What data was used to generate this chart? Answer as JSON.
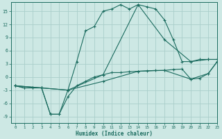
{
  "xlabel": "Humidex (Indice chaleur)",
  "ylabel": "",
  "bg_color": "#cde8e4",
  "line_color": "#1a6b5e",
  "grid_color": "#aaceca",
  "xlim": [
    -0.5,
    23
  ],
  "ylim": [
    -10.5,
    17
  ],
  "xticks": [
    0,
    1,
    2,
    3,
    4,
    5,
    6,
    7,
    8,
    9,
    10,
    11,
    12,
    13,
    14,
    15,
    16,
    17,
    18,
    19,
    20,
    21,
    22,
    23
  ],
  "yticks": [
    -9,
    -6,
    -3,
    0,
    3,
    6,
    9,
    12,
    15
  ],
  "curve_arch_x": [
    0,
    1,
    2,
    3,
    4,
    5,
    6,
    7,
    8,
    9,
    10,
    11,
    12,
    13,
    14,
    15,
    16,
    17,
    18,
    19,
    20,
    21,
    22,
    23
  ],
  "curve_arch_y": [
    -2,
    -2.5,
    -2.5,
    -2.5,
    -8.5,
    -8.5,
    -3.0,
    3.5,
    10.5,
    11.5,
    15.0,
    15.5,
    16.5,
    15.5,
    16.5,
    16.0,
    15.5,
    13.0,
    8.5,
    3.5,
    3.5,
    4.0,
    4.0,
    4.0
  ],
  "curve_flat_x": [
    0,
    1,
    2,
    3,
    4,
    5,
    6,
    7,
    8,
    9,
    10,
    11,
    12,
    13,
    14,
    15,
    16,
    17,
    18,
    19,
    20,
    21,
    22,
    23
  ],
  "curve_flat_y": [
    -2,
    -2.5,
    -2.5,
    -2.5,
    -8.5,
    -8.5,
    -4.5,
    -2.0,
    -1.0,
    0.0,
    0.5,
    1.0,
    1.0,
    1.2,
    1.3,
    1.4,
    1.5,
    1.5,
    1.7,
    1.8,
    -0.5,
    -0.3,
    0.8,
    3.5
  ],
  "curve_diag_upper_x": [
    0,
    3,
    6,
    10,
    14,
    17,
    20,
    22,
    23
  ],
  "curve_diag_upper_y": [
    -2,
    -2.5,
    -3.0,
    0.5,
    16.5,
    8.5,
    3.5,
    4.0,
    4.0
  ],
  "curve_diag_lower_x": [
    0,
    3,
    6,
    10,
    14,
    17,
    20,
    22,
    23
  ],
  "curve_diag_lower_y": [
    -2,
    -2.5,
    -3.0,
    -1.0,
    1.3,
    1.5,
    -0.5,
    0.8,
    3.5
  ]
}
